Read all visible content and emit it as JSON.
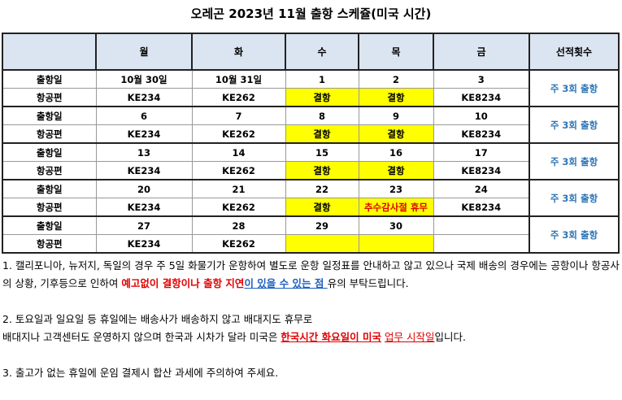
{
  "title": "오레곤 2023년 11월 출항 스케쥴(미국 시간)",
  "table": {
    "header": [
      null,
      "월",
      "화",
      "수",
      "목",
      "금",
      "선적횟수"
    ],
    "row_labels": [
      "출항일",
      "항공편"
    ],
    "weeks": [
      {
        "dates": [
          "10월 30일",
          "10월 31일",
          "1",
          "2",
          "3"
        ],
        "flights": [
          "KE234",
          "KE262",
          "결항",
          "결항",
          "KE8234"
        ],
        "frequency": "주 3회 출항"
      },
      {
        "dates": [
          "6",
          "7",
          "8",
          "9",
          "10"
        ],
        "flights": [
          "KE234",
          "KE262",
          "결항",
          "결항",
          "KE8234"
        ],
        "frequency": "주 3회 출항"
      },
      {
        "dates": [
          "13",
          "14",
          "15",
          "16",
          "17"
        ],
        "flights": [
          "KE234",
          "KE262",
          "결항",
          "결항",
          "KE8234"
        ],
        "frequency": "주 3회 출항"
      },
      {
        "dates": [
          "20",
          "21",
          "22",
          "23",
          "24"
        ],
        "flights": [
          "KE234",
          "KE262",
          "결항",
          "추수감사절 휴무",
          "KE8234"
        ],
        "frequency": "주 3회 출항"
      },
      {
        "dates": [
          "27",
          "28",
          "29",
          "30",
          null
        ],
        "flights": [
          "KE234",
          "KE262",
          null,
          null,
          null
        ],
        "frequency": "주 3회 출항"
      }
    ]
  },
  "notes": [
    [
      [
        {
          "text": "1. 캘리포니아, 뉴저지, 독일의 경우 주 5일 화물기가 운항하여 별도로 운항 일정표를 안내하고 않고 있으나 국제 배송의 경우에는 공항이나 항공사의 상황, 기후등으로 인하여 ",
          "style": "plain"
        },
        {
          "text": "예고없이 결항이나 출항 지연",
          "style": "red-bold"
        },
        {
          "text": "이 있을 수 있는 점 ",
          "style": "blue-bold-underline"
        },
        {
          "text": "유의 부탁드립니다.",
          "style": "plain"
        }
      ]
    ],
    [
      [
        {
          "text": "2. 토요일과 일요일 등 휴일에는 배송사가 배송하지 않고 배대지도 휴무로",
          "style": "plain"
        }
      ],
      [
        {
          "text": "배대지나 고객센터도 운영하지 않으며 한국과 시차가 달라 미국은 ",
          "style": "plain"
        },
        {
          "text": "한국시간 화요일이 미국",
          "style": "red-bold-underline"
        },
        {
          "text": " ",
          "style": "plain"
        },
        {
          "text": "업무 시작일",
          "style": "red-underline"
        },
        {
          "text": "입니다.",
          "style": "plain"
        }
      ]
    ],
    [
      [
        {
          "text": "3. 출고가 없는 휴일에 운임 결제시 합산 과세에 주의하여 주세요.",
          "style": "plain"
        }
      ]
    ]
  ]
}
